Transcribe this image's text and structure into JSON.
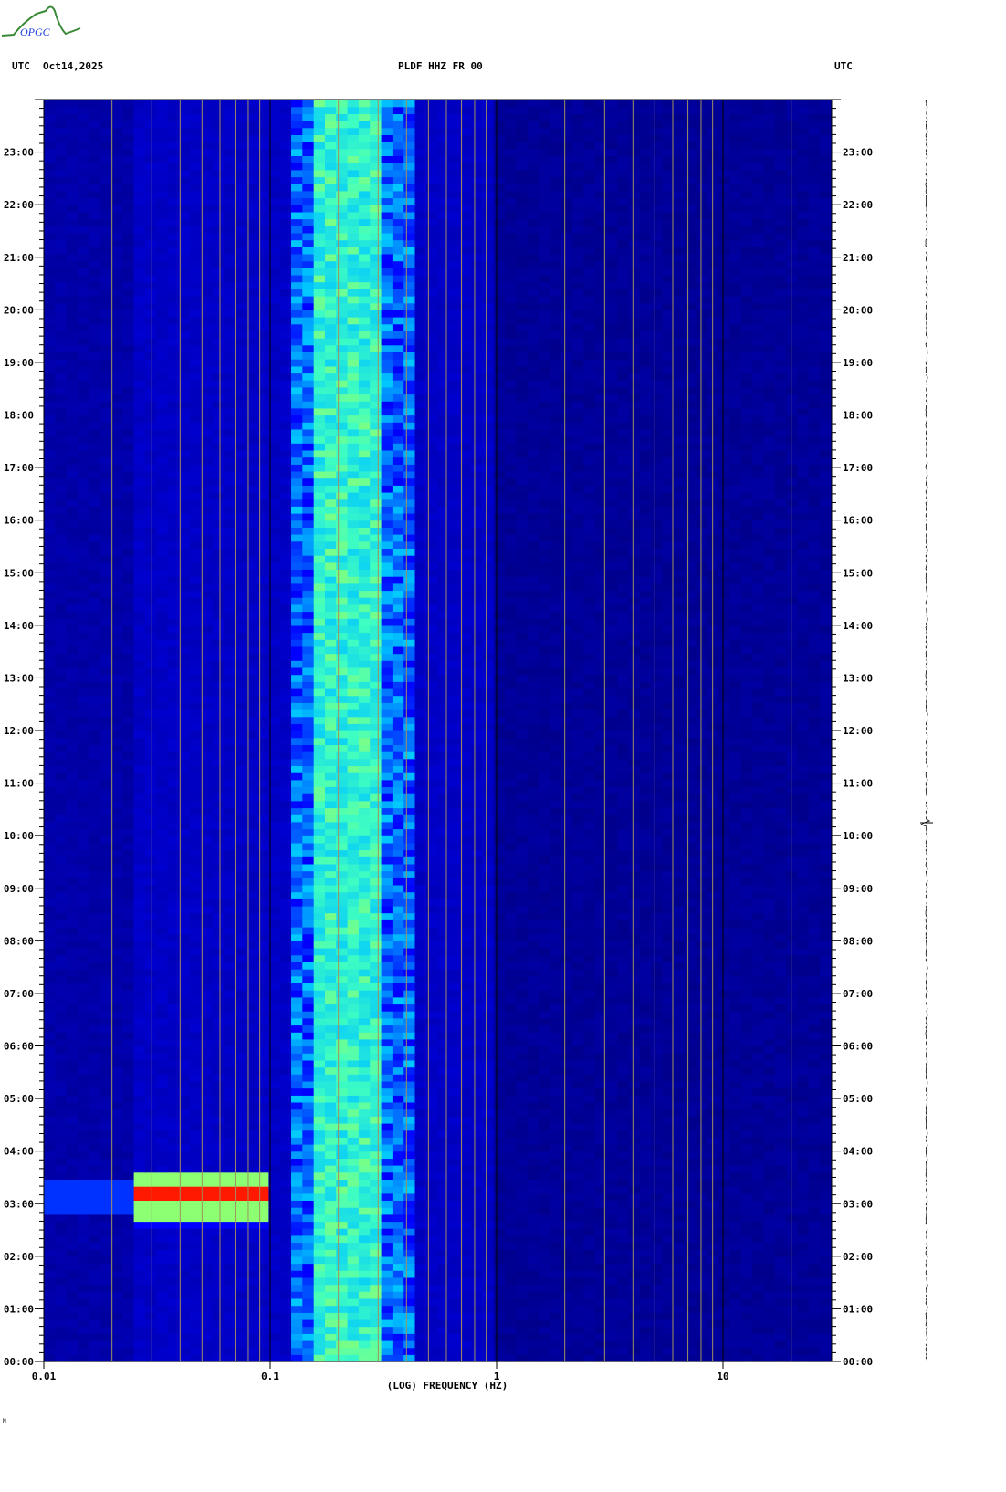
{
  "header": {
    "left_tz": "UTC",
    "date": "Oct14,2025",
    "station": "PLDF HHZ FR 00",
    "right_tz": "UTC"
  },
  "logo": {
    "text": "OPGC"
  },
  "footer_mark": "M",
  "chart_data": {
    "type": "heatmap",
    "title": "PLDF HHZ FR 00",
    "xlabel": "(LOG) FREQUENCY (HZ)",
    "xscale": "log",
    "xlim": [
      0.01,
      30
    ],
    "x_ticks": [
      "0.01",
      "0.1",
      "1",
      "10"
    ],
    "ylabel": "",
    "ylim": [
      "00:00",
      "24:00"
    ],
    "y_ticks": [
      "00:00",
      "01:00",
      "02:00",
      "03:00",
      "04:00",
      "05:00",
      "06:00",
      "07:00",
      "08:00",
      "09:00",
      "10:00",
      "11:00",
      "12:00",
      "13:00",
      "14:00",
      "15:00",
      "16:00",
      "17:00",
      "18:00",
      "19:00",
      "20:00",
      "21:00",
      "22:00",
      "23:00"
    ],
    "grid": true,
    "colormap": [
      "#00008c",
      "#0000ff",
      "#00c8ff",
      "#40ffc0",
      "#ffff00",
      "#ff0000"
    ],
    "bands": [
      {
        "f_min": 0.01,
        "f_max": 0.025,
        "level": 0.05
      },
      {
        "f_min": 0.025,
        "f_max": 0.12,
        "level": 0.1
      },
      {
        "f_min": 0.12,
        "f_max": 0.15,
        "level": 0.3
      },
      {
        "f_min": 0.15,
        "f_max": 0.3,
        "level": 0.55
      },
      {
        "f_min": 0.3,
        "f_max": 0.45,
        "level": 0.3
      },
      {
        "f_min": 0.45,
        "f_max": 1,
        "level": 0.1
      },
      {
        "f_min": 1,
        "f_max": 30,
        "level": 0.02
      }
    ],
    "events": [
      {
        "t_start": "02:25",
        "t_end": "03:35",
        "f_min": 0.025,
        "f_max": 0.1,
        "peak_time": "03:05",
        "level": 1.0
      }
    ]
  }
}
